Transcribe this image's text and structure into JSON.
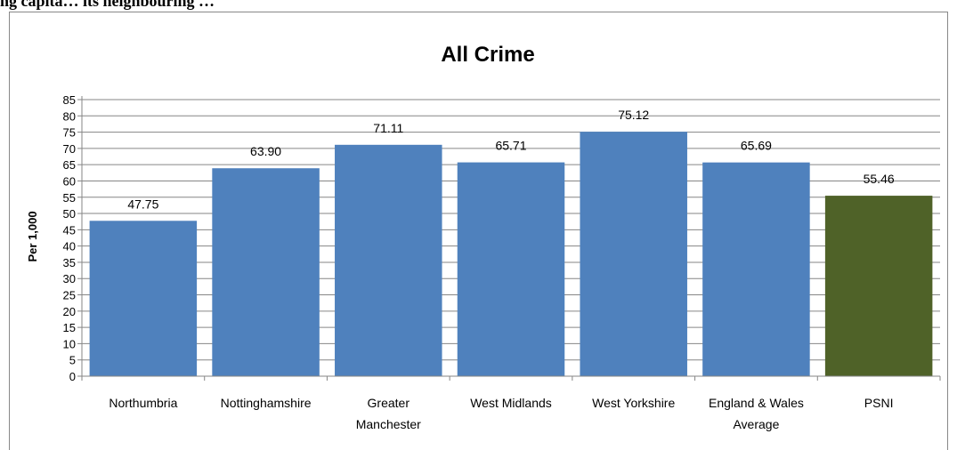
{
  "heading": "ng capita… its neighbouring …",
  "chart_data": {
    "type": "bar",
    "title": "All Crime",
    "ylabel": "Per 1,000",
    "xlabel": "",
    "ylim": [
      0,
      85
    ],
    "ytick_step": 5,
    "categories": [
      [
        "Northumbria"
      ],
      [
        "Nottinghamshire"
      ],
      [
        "Greater",
        "Manchester"
      ],
      [
        "West Midlands"
      ],
      [
        "West Yorkshire"
      ],
      [
        "England & Wales",
        "Average"
      ],
      [
        "PSNI"
      ]
    ],
    "values": [
      47.75,
      63.9,
      71.11,
      65.71,
      75.12,
      65.69,
      55.46
    ],
    "value_labels": [
      "47.75",
      "63.90",
      "71.11",
      "65.71",
      "75.12",
      "65.69",
      "55.46"
    ],
    "colors": [
      "#4f81bd",
      "#4f81bd",
      "#4f81bd",
      "#4f81bd",
      "#4f81bd",
      "#4f81bd",
      "#4f6228"
    ],
    "grid": true,
    "legend": "none"
  }
}
